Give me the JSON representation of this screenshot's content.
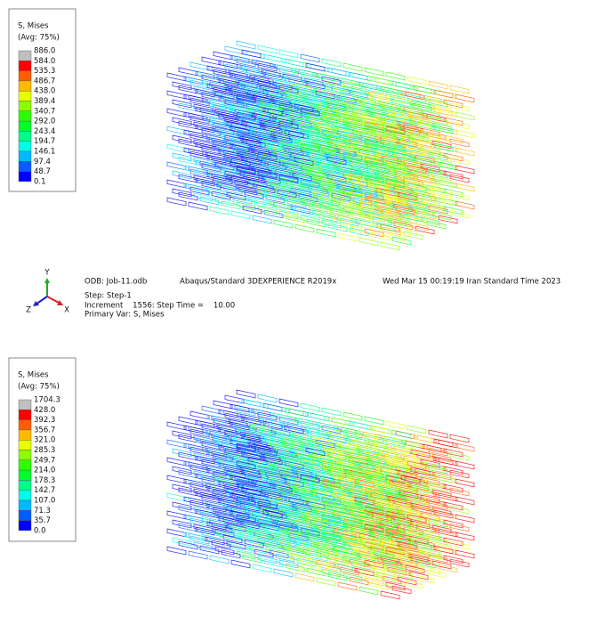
{
  "panels": [
    {
      "legend": {
        "title": "S, Mises",
        "subtitle": "(Avg: 75%)",
        "labels": [
          "886.0",
          "584.0",
          "535.3",
          "486.7",
          "438.0",
          "389.4",
          "340.7",
          "292.0",
          "243.4",
          "194.7",
          "146.1",
          "97.4",
          "48.7",
          "0.1"
        ],
        "colors": [
          "#c0c0c0",
          "#ff0000",
          "#ff5d00",
          "#ffb900",
          "#e8ff00",
          "#8bff00",
          "#2eff00",
          "#00ff2e",
          "#00ff8b",
          "#00ffe8",
          "#00b9ff",
          "#005dff",
          "#0000ff"
        ]
      },
      "triad": {
        "y": "Y",
        "z": "Z",
        "x": "X"
      },
      "info": {
        "odb": "ODB: Job-11.odb",
        "solver": "Abaqus/Standard 3DEXPERIENCE R2019x",
        "date": "Wed Mar 15 00:19:19 Iran Standard Time 2023",
        "step": "Step: Step-1",
        "increment": "Increment    1556: Step Time =    10.00",
        "primary_var": "Primary Var: S, Mises"
      }
    },
    {
      "legend": {
        "title": "S, Mises",
        "subtitle": "(Avg: 75%)",
        "labels": [
          "1704.3",
          "428.0",
          "392.3",
          "356.7",
          "321.0",
          "285.3",
          "249.7",
          "214.0",
          "178.3",
          "142.7",
          "107.0",
          "71.3",
          "35.7",
          "0.0"
        ],
        "colors": [
          "#c0c0c0",
          "#ff0000",
          "#ff5d00",
          "#ffb900",
          "#e8ff00",
          "#8bff00",
          "#2eff00",
          "#00ff2e",
          "#00ff8b",
          "#00ffe8",
          "#00b9ff",
          "#005dff",
          "#0000ff"
        ]
      }
    }
  ]
}
